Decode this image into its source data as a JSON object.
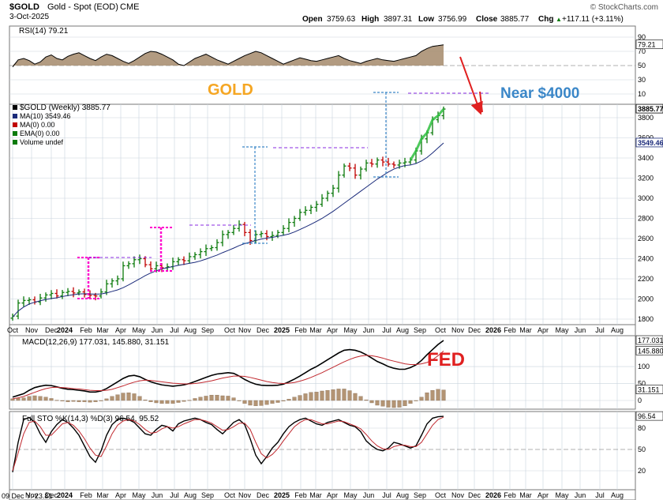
{
  "header": {
    "symbol": "$GOLD",
    "name": "Gold - Spot (EOD)",
    "exchange": "CME",
    "date": "3-Oct-2025",
    "watermark": "© StockCharts.com",
    "open_label": "Open",
    "open": "3759.63",
    "high_label": "High",
    "high": "3897.31",
    "low_label": "Low",
    "low": "3756.99",
    "close_label": "Close",
    "close": "3885.77",
    "chg_label": "Chg",
    "chg": "+117.11 (+3.11%)",
    "chg_arrow": "▲"
  },
  "annotations": {
    "gold": "GOLD",
    "near": "Near $4000",
    "fed": "FED"
  },
  "colors": {
    "up": "#0b7a0b",
    "down": "#c00000",
    "ma10": "#1a2a7a",
    "grid": "#c9d3de",
    "rsi_fill": "#a58a6b",
    "macd_hist": "#b39474",
    "signal": "#c0282e",
    "gold_text": "#f5a623",
    "near_text": "#3b87c8",
    "fed_text": "#e02020",
    "projection": "#e02020",
    "magenta": "#ff00cc",
    "purple": "#8a2be2",
    "blue_dash": "#3b87c8"
  },
  "chart_data": [
    {
      "type": "line",
      "panel": "rsi",
      "title": "RSI(14) 79.21",
      "ticks": [
        "90",
        "70",
        "50",
        "30",
        "10"
      ],
      "ylim": [
        0,
        100
      ],
      "last": "79.21",
      "series": [
        {
          "name": "RSI(14)",
          "values": [
            48,
            58,
            60,
            57,
            52,
            55,
            62,
            65,
            60,
            58,
            63,
            66,
            68,
            64,
            60,
            57,
            62,
            66,
            64,
            60,
            56,
            53,
            57,
            62,
            67,
            70,
            69,
            66,
            62,
            58,
            52,
            50,
            55,
            60,
            63,
            66,
            62,
            58,
            55,
            52,
            56,
            60,
            64,
            67,
            70,
            68,
            64,
            60,
            56,
            52,
            55,
            58,
            61,
            59,
            57,
            56,
            58,
            60,
            62,
            64,
            60,
            57,
            55,
            53,
            56,
            58,
            60,
            58,
            57,
            56,
            58,
            60,
            62,
            64,
            70,
            74,
            77,
            78,
            79.21
          ]
        }
      ]
    },
    {
      "type": "bar",
      "panel": "price",
      "title": "$GOLD (Weekly) 3885.77",
      "legend": [
        "$GOLD (Weekly) 3885.77",
        "MA(10) 3549.46",
        "MA(0) 0.00",
        "EMA(0) 0.00",
        "Volume undef"
      ],
      "ticks": [
        "3885.77",
        "3800",
        "3600",
        "3549.46",
        "3400",
        "3200",
        "3000",
        "2800",
        "2600",
        "2400",
        "2200",
        "2000",
        "1800"
      ],
      "ylim": [
        1700,
        3960
      ],
      "x_ticks": [
        "Oct",
        "Nov",
        "Dec",
        "2024",
        "Feb",
        "Mar",
        "Apr",
        "May",
        "Jun",
        "Jul",
        "Aug",
        "Sep",
        "Oct",
        "Nov",
        "Dec",
        "2025",
        "Feb",
        "Mar",
        "Apr",
        "May",
        "Jun",
        "Jul",
        "Aug",
        "Sep",
        "Oct",
        "Nov",
        "Dec",
        "2026",
        "Feb",
        "Mar",
        "Apr",
        "May",
        "Jun",
        "Jul",
        "Aug"
      ],
      "series": [
        {
          "name": "$GOLD",
          "close": [
            1830,
            1960,
            1985,
            1992,
            1970,
            2010,
            2040,
            2055,
            2030,
            2065,
            2075,
            2060,
            2070,
            2045,
            2035,
            2030,
            2070,
            2150,
            2180,
            2200,
            2330,
            2350,
            2390,
            2400,
            2340,
            2300,
            2330,
            2310,
            2320,
            2370,
            2390,
            2380,
            2420,
            2440,
            2470,
            2500,
            2510,
            2560,
            2640,
            2660,
            2700,
            2740,
            2660,
            2580,
            2640,
            2650,
            2620,
            2630,
            2660,
            2700,
            2760,
            2800,
            2860,
            2880,
            2910,
            2940,
            3000,
            3050,
            3100,
            3230,
            3320,
            3300,
            3230,
            3290,
            3350,
            3340,
            3380,
            3360,
            3340,
            3330,
            3350,
            3360,
            3380,
            3470,
            3590,
            3650,
            3780,
            3820,
            3885.77
          ]
        },
        {
          "name": "MA(10)",
          "values": [
            1820,
            1880,
            1920,
            1950,
            1968,
            1982,
            1995,
            2005,
            2012,
            2024,
            2034,
            2042,
            2050,
            2052,
            2050,
            2048,
            2050,
            2060,
            2075,
            2090,
            2112,
            2140,
            2170,
            2200,
            2232,
            2258,
            2280,
            2298,
            2310,
            2322,
            2334,
            2344,
            2354,
            2364,
            2378,
            2396,
            2416,
            2436,
            2460,
            2482,
            2505,
            2530,
            2550,
            2565,
            2580,
            2595,
            2605,
            2612,
            2622,
            2632,
            2645,
            2665,
            2690,
            2715,
            2742,
            2770,
            2800,
            2835,
            2870,
            2910,
            2950,
            2990,
            3030,
            3070,
            3110,
            3150,
            3190,
            3225,
            3260,
            3290,
            3310,
            3325,
            3330,
            3345,
            3370,
            3405,
            3450,
            3500,
            3549.46
          ]
        }
      ]
    },
    {
      "type": "line",
      "panel": "macd",
      "title": "MACD(12,26,9) 177.031, 145.880, 31.151",
      "ticks": [
        "177.031",
        "145.880",
        "100",
        "50",
        "31.151",
        "0"
      ],
      "ylim": [
        -40,
        200
      ],
      "series": [
        {
          "name": "MACD",
          "values": [
            10,
            15,
            20,
            30,
            38,
            42,
            45,
            44,
            40,
            36,
            33,
            32,
            30,
            28,
            25,
            25,
            28,
            35,
            45,
            55,
            65,
            72,
            74,
            70,
            62,
            55,
            50,
            46,
            44,
            42,
            44,
            46,
            50,
            56,
            62,
            68,
            74,
            78,
            80,
            82,
            80,
            72,
            62,
            54,
            48,
            45,
            44,
            44,
            45,
            48,
            55,
            63,
            72,
            82,
            92,
            100,
            110,
            120,
            130,
            140,
            148,
            150,
            148,
            143,
            135,
            125,
            115,
            108,
            100,
            95,
            92,
            92,
            97,
            105,
            118,
            135,
            150,
            165,
            177.031
          ]
        },
        {
          "name": "Signal",
          "values": [
            5,
            8,
            12,
            18,
            24,
            30,
            35,
            38,
            39,
            38,
            37,
            35,
            34,
            32,
            30,
            29,
            29,
            30,
            33,
            38,
            43,
            49,
            54,
            58,
            60,
            59,
            57,
            55,
            53,
            51,
            50,
            49,
            49,
            50,
            52,
            55,
            58,
            62,
            66,
            69,
            72,
            72,
            71,
            68,
            64,
            60,
            56,
            53,
            51,
            50,
            51,
            53,
            57,
            62,
            68,
            75,
            82,
            90,
            98,
            106,
            114,
            121,
            127,
            131,
            133,
            132,
            129,
            125,
            120,
            116,
            112,
            108,
            106,
            106,
            108,
            112,
            120,
            132,
            145.88
          ]
        },
        {
          "name": "Histogram",
          "values": [
            5,
            7,
            8,
            12,
            14,
            12,
            10,
            6,
            1,
            -2,
            -4,
            -3,
            -4,
            -4,
            -5,
            -4,
            -1,
            5,
            12,
            17,
            22,
            23,
            20,
            12,
            2,
            -4,
            -7,
            -9,
            -9,
            -9,
            -6,
            -3,
            1,
            6,
            10,
            13,
            16,
            16,
            14,
            13,
            8,
            0,
            -9,
            -14,
            -16,
            -15,
            -12,
            -9,
            -6,
            -2,
            4,
            10,
            15,
            20,
            24,
            25,
            28,
            30,
            32,
            34,
            34,
            29,
            21,
            12,
            2,
            -7,
            -14,
            -17,
            -20,
            -21,
            -20,
            -16,
            -9,
            -1,
            10,
            23,
            30,
            33,
            31.151
          ]
        }
      ]
    },
    {
      "type": "line",
      "panel": "sto",
      "title": "Full STO %K(14,3) %D(3) 96.54, 95.52",
      "ticks": [
        "96.54",
        "80",
        "50",
        "20"
      ],
      "ylim": [
        0,
        100
      ],
      "series": [
        {
          "name": "%K",
          "values": [
            18,
            60,
            92,
            95,
            88,
            72,
            60,
            75,
            85,
            92,
            88,
            80,
            70,
            55,
            40,
            32,
            48,
            70,
            85,
            92,
            94,
            92,
            88,
            80,
            72,
            70,
            78,
            84,
            82,
            76,
            86,
            90,
            92,
            94,
            92,
            88,
            85,
            78,
            72,
            80,
            88,
            92,
            85,
            65,
            42,
            30,
            40,
            52,
            60,
            72,
            82,
            88,
            92,
            94,
            90,
            86,
            84,
            88,
            90,
            92,
            88,
            84,
            82,
            75,
            62,
            55,
            50,
            48,
            52,
            60,
            58,
            55,
            52,
            55,
            70,
            86,
            94,
            96,
            96.54
          ]
        },
        {
          "name": "%D",
          "values": [
            20,
            45,
            72,
            88,
            90,
            82,
            70,
            70,
            78,
            86,
            88,
            84,
            76,
            65,
            52,
            42,
            40,
            55,
            72,
            84,
            90,
            92,
            90,
            85,
            78,
            73,
            74,
            79,
            82,
            80,
            82,
            86,
            89,
            92,
            92,
            90,
            87,
            82,
            77,
            78,
            82,
            87,
            87,
            78,
            60,
            44,
            38,
            43,
            51,
            62,
            72,
            82,
            88,
            92,
            92,
            89,
            86,
            86,
            88,
            90,
            89,
            86,
            83,
            79,
            71,
            62,
            55,
            51,
            50,
            54,
            56,
            56,
            54,
            54,
            60,
            72,
            84,
            92,
            95.52
          ]
        }
      ]
    }
  ],
  "bottom_note": "09 Dec Y:-23.81"
}
